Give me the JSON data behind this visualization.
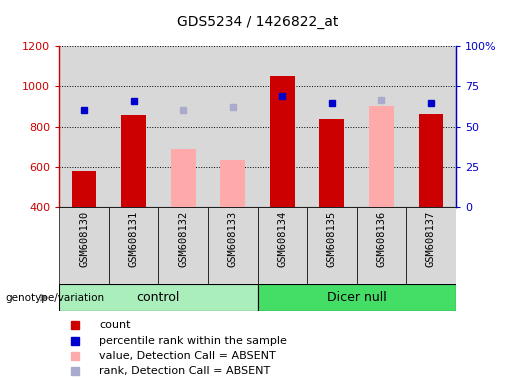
{
  "title": "GDS5234 / 1426822_at",
  "samples": [
    "GSM608130",
    "GSM608131",
    "GSM608132",
    "GSM608133",
    "GSM608134",
    "GSM608135",
    "GSM608136",
    "GSM608137"
  ],
  "count_values": [
    580,
    860,
    null,
    null,
    1050,
    840,
    null,
    865
  ],
  "percentile_rank": [
    885,
    930,
    null,
    null,
    950,
    920,
    null,
    920
  ],
  "absent_value": [
    null,
    null,
    690,
    635,
    null,
    null,
    905,
    null
  ],
  "absent_rank": [
    null,
    null,
    885,
    898,
    null,
    null,
    935,
    null
  ],
  "ylim_left": [
    400,
    1200
  ],
  "ylim_right": [
    0,
    100
  ],
  "yticks_left": [
    400,
    600,
    800,
    1000,
    1200
  ],
  "yticks_right": [
    0,
    25,
    50,
    75,
    100
  ],
  "yticklabels_right": [
    "0",
    "25",
    "50",
    "75",
    "100%"
  ],
  "bar_bottom": 400,
  "color_count": "#cc0000",
  "color_rank": "#0000cc",
  "color_absent_value": "#ffaaaa",
  "color_absent_rank": "#aaaacc",
  "color_group_control": "#aaeebb",
  "color_group_dicernull": "#44dd66",
  "background_plot": "#d8d8d8",
  "n_samples": 8,
  "n_control": 4,
  "n_dicer": 4,
  "legend_items": [
    "count",
    "percentile rank within the sample",
    "value, Detection Call = ABSENT",
    "rank, Detection Call = ABSENT"
  ],
  "legend_colors": [
    "#cc0000",
    "#0000cc",
    "#ffaaaa",
    "#aaaacc"
  ]
}
